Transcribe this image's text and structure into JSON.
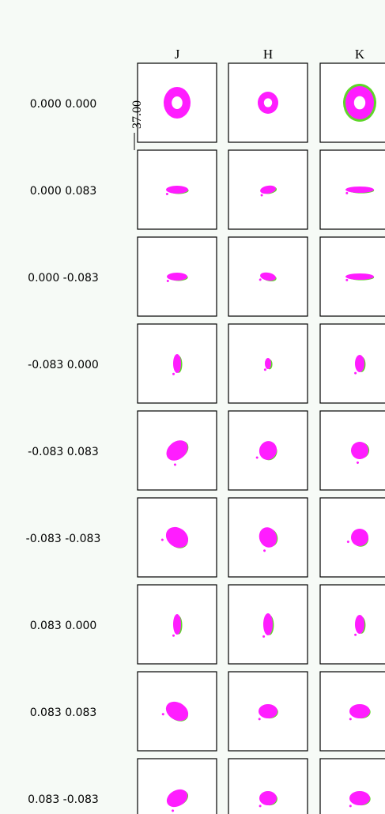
{
  "columns": [
    "J",
    "H",
    "K"
  ],
  "rows": [
    "0.000 0.000",
    "0.000 0.083",
    "0.000 -0.083",
    "-0.083 0.000",
    "-0.083 0.083",
    "-0.083 -0.083",
    "0.083 0.000",
    "0.083 0.083",
    "0.083 -0.083"
  ],
  "scale_label": "37.00"
}
